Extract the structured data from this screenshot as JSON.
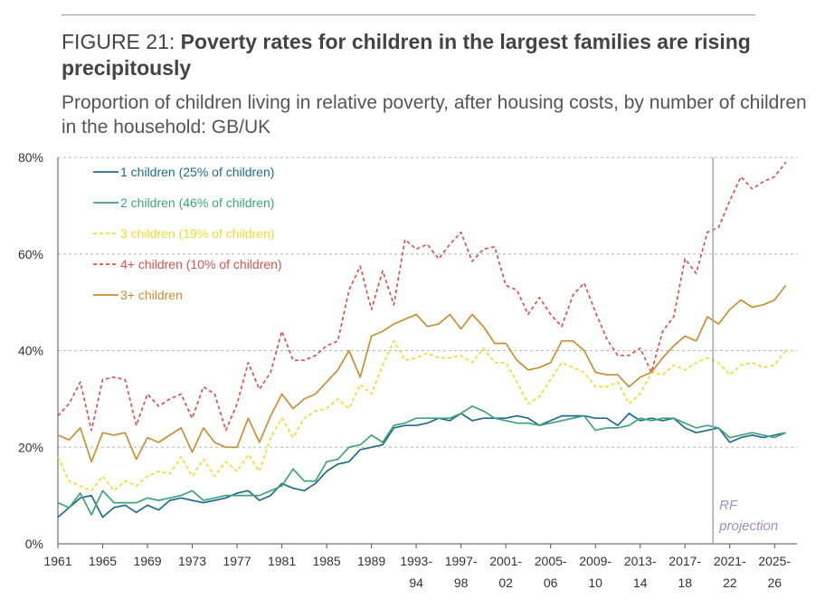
{
  "header": {
    "figure_label": "FIGURE 21:",
    "title": "Poverty rates for children in the largest families are rising precipitously",
    "subtitle": "Proportion of children living in relative poverty, after housing costs, by number of children in the household: GB/UK"
  },
  "chart_data": {
    "type": "line",
    "ylim": [
      0,
      80
    ],
    "xlim": [
      1961,
      2027
    ],
    "y_ticks": [
      {
        "value": 0,
        "label": "0%"
      },
      {
        "value": 20,
        "label": "20%"
      },
      {
        "value": 40,
        "label": "40%"
      },
      {
        "value": 60,
        "label": "60%"
      },
      {
        "value": 80,
        "label": "80%"
      }
    ],
    "x_ticks": [
      {
        "x": 1961,
        "line1": "1961",
        "line2": ""
      },
      {
        "x": 1965,
        "line1": "1965",
        "line2": ""
      },
      {
        "x": 1969,
        "line1": "1969",
        "line2": ""
      },
      {
        "x": 1973,
        "line1": "1973",
        "line2": ""
      },
      {
        "x": 1977,
        "line1": "1977",
        "line2": ""
      },
      {
        "x": 1981,
        "line1": "1981",
        "line2": ""
      },
      {
        "x": 1985,
        "line1": "1985",
        "line2": ""
      },
      {
        "x": 1989,
        "line1": "1989",
        "line2": ""
      },
      {
        "x": 1993,
        "line1": "1993-",
        "line2": "94"
      },
      {
        "x": 1997,
        "line1": "1997-",
        "line2": "98"
      },
      {
        "x": 2001,
        "line1": "2001-",
        "line2": "02"
      },
      {
        "x": 2005,
        "line1": "2005-",
        "line2": "06"
      },
      {
        "x": 2009,
        "line1": "2009-",
        "line2": "10"
      },
      {
        "x": 2013,
        "line1": "2013-",
        "line2": "14"
      },
      {
        "x": 2017,
        "line1": "2017-",
        "line2": "18"
      },
      {
        "x": 2021,
        "line1": "2021-",
        "line2": "22"
      },
      {
        "x": 2025,
        "line1": "2025-",
        "line2": "26"
      }
    ],
    "grid": true,
    "legend_position": "top-left",
    "projection_start": 2019.5,
    "annotation": [
      "RF",
      "projection"
    ],
    "x": [
      1961,
      1962,
      1963,
      1964,
      1965,
      1966,
      1967,
      1968,
      1969,
      1970,
      1971,
      1972,
      1973,
      1974,
      1975,
      1976,
      1977,
      1978,
      1979,
      1980,
      1981,
      1982,
      1983,
      1984,
      1985,
      1986,
      1987,
      1988,
      1989,
      1990,
      1991,
      1992,
      1993,
      1994,
      1995,
      1996,
      1997,
      1998,
      1999,
      2000,
      2001,
      2002,
      2003,
      2004,
      2005,
      2006,
      2007,
      2008,
      2009,
      2010,
      2011,
      2012,
      2013,
      2014,
      2015,
      2016,
      2017,
      2018,
      2019,
      2020,
      2021,
      2022,
      2023,
      2024,
      2025,
      2026
    ],
    "series": [
      {
        "name": "1 children (25% of children)",
        "color": "#1e6b8f",
        "dash": false,
        "values": [
          5.5,
          7.5,
          9.5,
          10,
          5.5,
          7.5,
          8,
          6.5,
          8,
          7,
          9,
          9.5,
          9,
          8.5,
          9,
          9.5,
          10.5,
          11,
          9,
          10,
          12.5,
          11.5,
          11,
          12.5,
          15,
          16.5,
          17,
          19.5,
          20,
          20.5,
          24,
          24.5,
          24.5,
          25,
          26,
          25.5,
          27,
          25.5,
          26,
          26,
          26,
          26.5,
          26,
          24.5,
          25.5,
          26.5,
          26.5,
          26.5,
          26,
          26,
          24.5,
          27,
          25.5,
          26,
          25.5,
          26,
          24,
          23,
          23.5,
          24,
          21,
          22,
          22.5,
          22,
          22.5,
          23
        ]
      },
      {
        "name": "2 children (46% of children)",
        "color": "#3fa47a",
        "dash": false,
        "values": [
          8.5,
          7.5,
          10.5,
          6,
          11,
          8.5,
          8.5,
          8.5,
          9.5,
          9,
          9.5,
          10,
          11,
          9,
          9.5,
          10,
          10,
          10,
          10,
          11,
          12,
          15.5,
          13,
          13,
          17,
          17.5,
          20,
          20.5,
          22.5,
          21,
          24.5,
          25,
          26,
          26,
          26,
          26,
          27,
          28.5,
          27.5,
          26,
          25.5,
          25,
          25,
          24.5,
          25,
          25.5,
          26,
          26.5,
          23.5,
          24,
          24,
          24.5,
          26,
          25.5,
          26,
          26,
          25,
          24,
          24.5,
          24,
          22,
          22.5,
          23,
          22.5,
          22,
          23
        ]
      },
      {
        "name": "3 children (19% of children)",
        "color": "#eedc2e",
        "dash": true,
        "values": [
          18,
          13,
          12,
          11,
          14,
          11,
          13,
          12,
          14,
          15,
          14.5,
          18,
          14,
          17.5,
          14,
          17,
          15,
          18.5,
          15,
          22,
          26,
          22,
          26,
          27.5,
          28,
          30,
          28,
          33,
          31,
          37,
          42,
          38,
          38.5,
          39.5,
          38.5,
          38.5,
          39,
          37.5,
          40.5,
          37.5,
          37.5,
          33.5,
          29,
          30.5,
          34,
          37.5,
          36.5,
          35.5,
          32.5,
          32.5,
          33.5,
          29,
          31,
          35.5,
          35,
          37,
          36,
          37.5,
          38.5,
          37.5,
          35,
          37,
          37.5,
          36.5,
          37,
          40
        ]
      },
      {
        "name": "4+ children (10% of children)",
        "color": "#d9534f",
        "dash": true,
        "values": [
          26.5,
          29,
          33.5,
          23.5,
          34,
          34.5,
          34,
          24.5,
          31,
          28.5,
          30,
          31,
          26,
          32.5,
          31,
          23.5,
          29,
          37.5,
          32,
          35.5,
          44,
          38,
          38,
          39,
          41,
          42,
          52.5,
          57.5,
          48.5,
          56.5,
          49.5,
          63,
          61,
          62,
          59,
          62,
          64.5,
          58.5,
          61,
          61.5,
          53.5,
          52.5,
          47.5,
          51,
          47.5,
          45,
          51.5,
          54,
          48,
          42.5,
          39,
          39,
          40.5,
          35.5,
          44,
          47,
          59,
          56,
          64.5,
          65.5,
          71,
          76,
          73.5,
          75,
          76,
          79
        ]
      },
      {
        "name": "3+ children",
        "color": "#c98f33",
        "dash": false,
        "values": [
          22.5,
          21.5,
          24,
          17,
          23,
          22.5,
          23,
          17.5,
          22,
          21,
          22.5,
          24,
          19,
          24,
          21,
          20,
          20,
          26,
          21,
          26.5,
          31,
          28,
          30,
          31,
          33.5,
          36,
          40,
          34.5,
          43,
          44,
          45.5,
          46.5,
          47.5,
          45,
          45.5,
          47.5,
          44.5,
          47.5,
          45,
          41.5,
          41.5,
          38,
          36,
          36.5,
          37.5,
          42,
          42,
          40,
          35.5,
          35,
          35,
          32.5,
          34.5,
          35.5,
          38.5,
          41,
          43,
          42,
          47,
          45.5,
          48.5,
          50.5,
          49,
          49.5,
          50.5,
          53.5
        ]
      }
    ]
  }
}
